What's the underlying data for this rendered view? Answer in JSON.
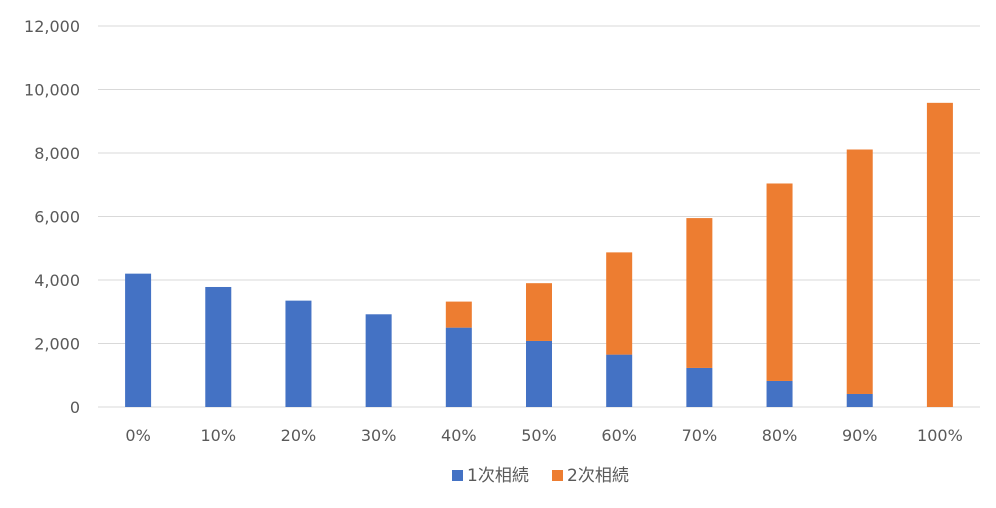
{
  "chart_data": {
    "type": "bar",
    "stacked": true,
    "categories": [
      "0%",
      "10%",
      "20%",
      "30%",
      "40%",
      "50%",
      "60%",
      "70%",
      "80%",
      "90%",
      "100%"
    ],
    "series": [
      {
        "name": "1次相続",
        "color": "#4472C4",
        "values": [
          4200,
          3780,
          3350,
          2920,
          2500,
          2080,
          1650,
          1230,
          820,
          410,
          0
        ]
      },
      {
        "name": "2次相続",
        "color": "#ED7D31",
        "values": [
          0,
          0,
          0,
          0,
          820,
          1820,
          3220,
          4720,
          6220,
          7700,
          9580
        ]
      }
    ],
    "ylim": [
      0,
      12000
    ],
    "yticks": [
      0,
      2000,
      4000,
      6000,
      8000,
      10000,
      12000
    ],
    "ytick_labels": [
      "0",
      "2,000",
      "4,000",
      "6,000",
      "8,000",
      "10,000",
      "12,000"
    ],
    "grid": true,
    "legend_position": "bottom"
  }
}
